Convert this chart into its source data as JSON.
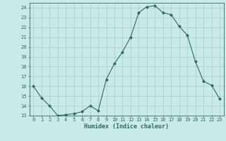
{
  "x": [
    0,
    1,
    2,
    3,
    4,
    5,
    6,
    7,
    8,
    9,
    10,
    11,
    12,
    13,
    14,
    15,
    16,
    17,
    18,
    19,
    20,
    21,
    22,
    23
  ],
  "y": [
    16.0,
    14.8,
    14.0,
    13.0,
    13.1,
    13.2,
    13.4,
    14.0,
    13.5,
    16.7,
    18.3,
    19.5,
    21.0,
    23.5,
    24.1,
    24.2,
    23.5,
    23.3,
    22.1,
    21.2,
    18.5,
    16.5,
    16.1,
    14.7
  ],
  "line_color": "#2e6b5e",
  "marker": "D",
  "marker_size": 2.0,
  "bg_color": "#c8eaea",
  "grid_color": "#a8cccc",
  "xlabel": "Humidex (Indice chaleur)",
  "xlim": [
    -0.5,
    23.5
  ],
  "ylim": [
    13,
    24.5
  ],
  "yticks": [
    13,
    14,
    15,
    16,
    17,
    18,
    19,
    20,
    21,
    22,
    23,
    24
  ],
  "xticks": [
    0,
    1,
    2,
    3,
    4,
    5,
    6,
    7,
    8,
    9,
    10,
    11,
    12,
    13,
    14,
    15,
    16,
    17,
    18,
    19,
    20,
    21,
    22,
    23
  ],
  "tick_label_color": "#2e6b5e",
  "axis_color": "#2e6b5e",
  "label_fontsize": 6.0,
  "tick_fontsize": 5.0
}
